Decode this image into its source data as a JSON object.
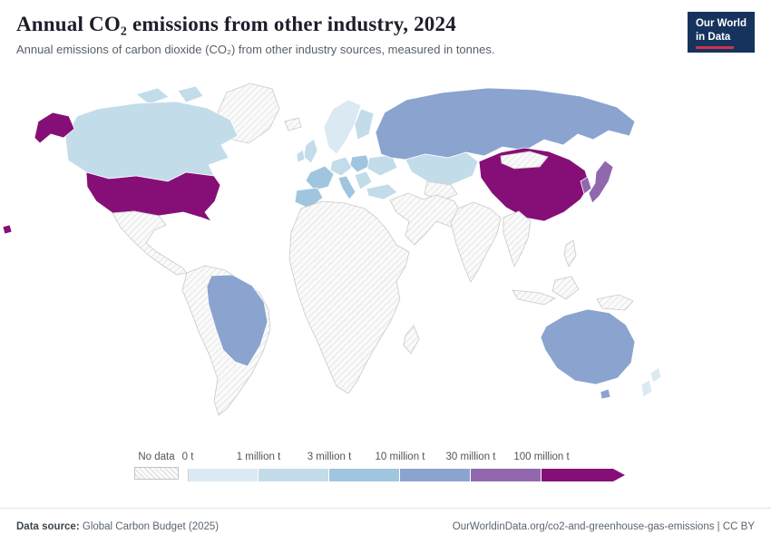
{
  "header": {
    "title": "Annual CO₂ emissions from other industry, 2024",
    "subtitle": "Annual emissions of carbon dioxide (CO₂) from other industry sources, measured in tonnes.",
    "logo": {
      "line1": "Our World",
      "line2": "in Data"
    }
  },
  "chart_data": {
    "type": "heatmap",
    "subtype": "world-choropleth-map",
    "title": "Annual CO₂ emissions from other industry, 2024",
    "unit": "tonnes",
    "legend": {
      "no_data_label": "No data",
      "tick_labels": [
        "0 t",
        "1 million t",
        "3 million t",
        "10 million t",
        "30 million t",
        "100 million t"
      ],
      "colors": [
        "#dbe9f2",
        "#c2dcea",
        "#9fc6de",
        "#8ba3cf",
        "#9168ae",
        "#860f77"
      ],
      "bins": [
        "0–1 million t",
        "1–3 million t",
        "3–10 million t",
        "10–30 million t",
        "30–100 million t",
        "100+ million t"
      ],
      "position": "bottom"
    },
    "region_bins": {
      "alaska": 5,
      "hawaii": 5,
      "united-states": 5,
      "canada": 1,
      "canadian-arctic-islands": 1,
      "greenland": "no-data",
      "mexico": "no-data",
      "south-america": "no-data",
      "brazil": 3,
      "iceland": "no-data",
      "united-kingdom": 1,
      "ireland": 1,
      "scandinavia": 0,
      "finland": 1,
      "central-europe": 1,
      "eastern-europe": 2,
      "france": 2,
      "iberia": 2,
      "italy": 2,
      "balkans": 1,
      "ukraine": 1,
      "turkey": 1,
      "russia": 3,
      "kazakhstan": 1,
      "central-asia": "no-data",
      "middle-east": "no-data",
      "africa": "no-data",
      "madagascar": "no-data",
      "india": "no-data",
      "china": 5,
      "mongolia": "no-data",
      "southeast-asia": "no-data",
      "indonesia": "no-data",
      "borneo": "no-data",
      "new-guinea": "no-data",
      "philippines": "no-data",
      "japan": 4,
      "south-korea": 4,
      "australia": 3,
      "tasmania": 3,
      "new-zealand": 0
    }
  },
  "footer": {
    "source_label": "Data source:",
    "source_text": "Global Carbon Budget (2025)",
    "credit": "OurWorldinData.org/co2-and-greenhouse-gas-emissions | CC BY"
  }
}
